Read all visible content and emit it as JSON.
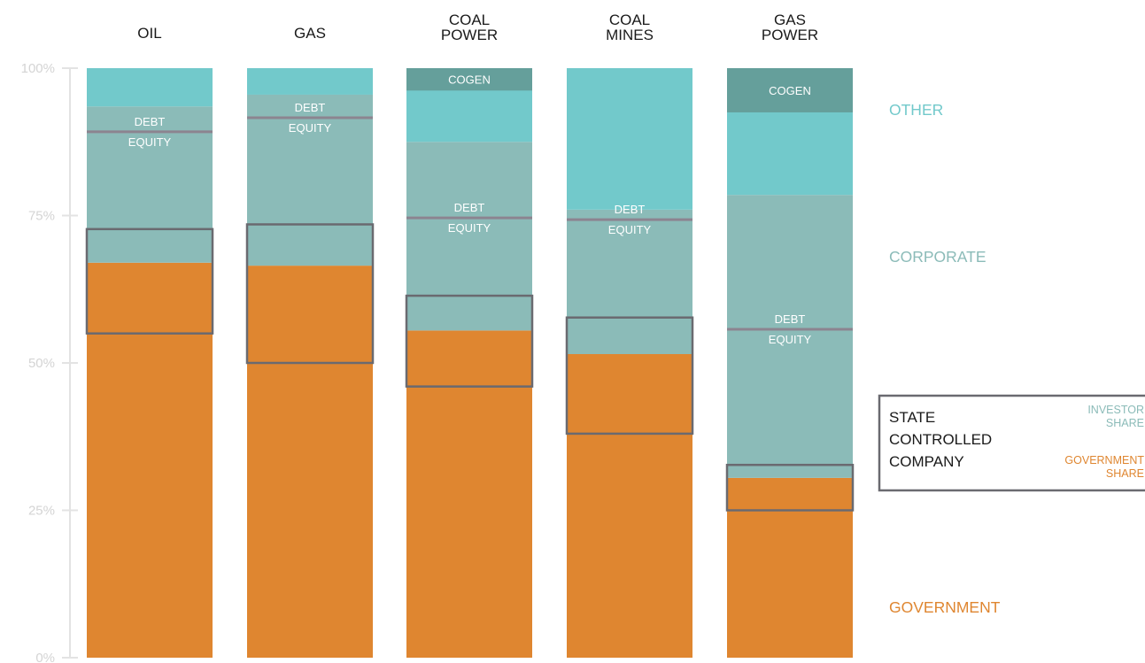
{
  "chart_data": {
    "type": "bar",
    "stacked": true,
    "categories": [
      "OIL",
      "GAS",
      "COAL POWER",
      "COAL MINES",
      "GAS POWER"
    ],
    "category_lines": [
      [
        "OIL"
      ],
      [
        "GAS"
      ],
      [
        "COAL",
        "POWER"
      ],
      [
        "COAL",
        "MINES"
      ],
      [
        "GAS",
        "POWER"
      ]
    ],
    "y_ticks": [
      0,
      25,
      50,
      75,
      100
    ],
    "y_tick_labels": [
      "0%",
      "25%",
      "50%",
      "75%",
      "100%"
    ],
    "ylim": [
      0,
      100
    ],
    "grid": false,
    "series": [
      {
        "name": "GOVERNMENT",
        "values": [
          67,
          66.5,
          55.5,
          51.5,
          30.5
        ]
      },
      {
        "name": "CORPORATE",
        "values": [
          26.5,
          29,
          32,
          24.5,
          48
        ]
      },
      {
        "name": "OTHER",
        "values": [
          6.5,
          4.5,
          12.5,
          24,
          21.5
        ]
      }
    ],
    "cogen": {
      "label": "COGEN",
      "values": [
        0,
        0,
        3.8,
        0,
        7.5
      ]
    },
    "debt_equity_split": {
      "debt_label": "DEBT",
      "equity_label": "EQUITY",
      "values": [
        89.2,
        91.6,
        74.6,
        74.3,
        55.7
      ]
    },
    "state_controlled_box": {
      "low": [
        55,
        50,
        46,
        38,
        25
      ],
      "high": [
        72.7,
        73.5,
        61.4,
        57.7,
        32.7
      ]
    },
    "band_labels": [
      "OTHER",
      "CORPORATE",
      "GOVERNMENT"
    ],
    "legend": {
      "title_lines": [
        "STATE",
        "CONTROLLED",
        "COMPANY"
      ],
      "investor_lines": [
        "INVESTOR",
        "SHARE"
      ],
      "government_lines": [
        "GOVERNMENT",
        "SHARE"
      ]
    },
    "colors": {
      "government": "#df8630",
      "corporate": "#8bbbb8",
      "other": "#72c9cb",
      "cogen": "#659f9b",
      "split_line": "#8c8490",
      "box": "#6a6a70",
      "axis": "#e3e3e3",
      "tick_label": "#d4d4d4"
    }
  }
}
